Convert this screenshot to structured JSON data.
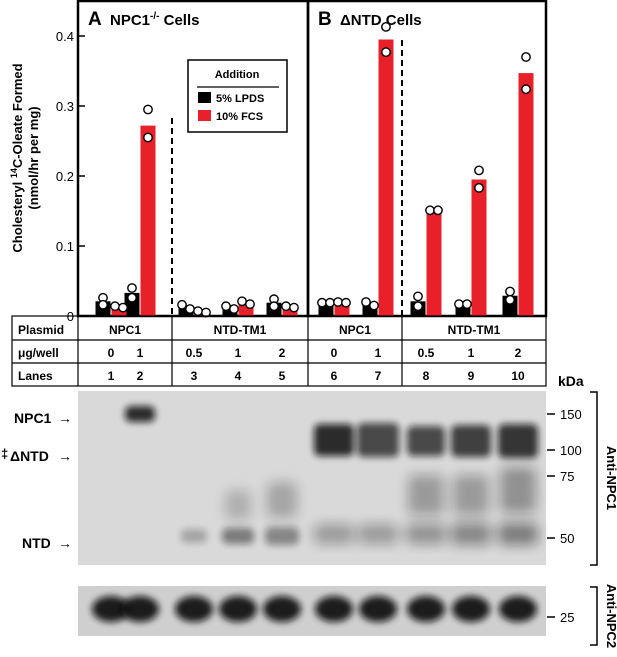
{
  "panels": [
    {
      "letter": "A",
      "title_main": "NPC1",
      "title_sup": "-/-",
      "title_rest": " Cells"
    },
    {
      "letter": "B",
      "title_main": "ΔNTD Cells",
      "title_sup": "",
      "title_rest": ""
    }
  ],
  "ylabel_line1_pre": "Cholesteryl ",
  "ylabel_line1_sup": "14",
  "ylabel_line1_post": "C-Oleate Formed",
  "ylabel_line2": "(nmol/hr per mg)",
  "legend": {
    "title": "Addition",
    "items": [
      {
        "label": "5% LPDS",
        "color": "#000000"
      },
      {
        "label": "10% FCS",
        "color": "#e8202a"
      }
    ]
  },
  "table": {
    "row_labels": [
      "Plasmid",
      "μg/well",
      "Lanes"
    ],
    "plasmid_groups": [
      "NPC1",
      "NTD-TM1",
      "NPC1",
      "NTD-TM1"
    ],
    "ug": [
      "0",
      "1",
      "0.5",
      "1",
      "2",
      "0",
      "1",
      "0.5",
      "1",
      "2"
    ],
    "lanes": [
      "1",
      "2",
      "3",
      "4",
      "5",
      "6",
      "7",
      "8",
      "9",
      "10"
    ]
  },
  "blot": {
    "kda_title": "kDa",
    "markers": [
      "150",
      "100",
      "75",
      "50"
    ],
    "marker2": "25",
    "labels": [
      "NPC1",
      "ΔNTD",
      "NTD"
    ],
    "dagger": "‡",
    "antibody1": "Anti-NPC1",
    "antibody2": "Anti-NPC2"
  },
  "chart_data": {
    "type": "bar",
    "categories": [
      "1",
      "2",
      "3",
      "4",
      "5",
      "6",
      "7",
      "8",
      "9",
      "10"
    ],
    "ylim": [
      0,
      0.45
    ],
    "yticks": [
      "0",
      "0.1",
      "0.2",
      "0.3",
      "0.4"
    ],
    "series": [
      {
        "name": "5% LPDS",
        "color": "#000000",
        "values": [
          0.021,
          0.033,
          0.014,
          0.012,
          0.019,
          0.019,
          0.017,
          0.021,
          0.017,
          0.029
        ],
        "points": [
          [
            0.026,
            0.016
          ],
          [
            0.04,
            0.026
          ],
          [
            0.016,
            0.01
          ],
          [
            0.014,
            0.01
          ],
          [
            0.024,
            0.014
          ],
          [
            0.019,
            0.019
          ],
          [
            0.02,
            0.015
          ],
          [
            0.028,
            0.014
          ],
          [
            0.017,
            0.017
          ],
          [
            0.035,
            0.023
          ]
        ]
      },
      {
        "name": "10% FCS",
        "color": "#e8202a",
        "values": [
          0.013,
          0.272,
          0.006,
          0.017,
          0.013,
          0.019,
          0.395,
          0.147,
          0.195,
          0.347
        ],
        "points": [
          [
            0.014,
            0.012
          ],
          [
            0.295,
            0.255
          ],
          [
            0.007,
            0.005
          ],
          [
            0.021,
            0.017
          ],
          [
            0.014,
            0.012
          ],
          [
            0.02,
            0.019
          ],
          [
            0.413,
            0.377
          ],
          [
            0.151,
            0.151
          ],
          [
            0.208,
            0.183
          ],
          [
            0.37,
            0.324
          ]
        ]
      }
    ]
  }
}
